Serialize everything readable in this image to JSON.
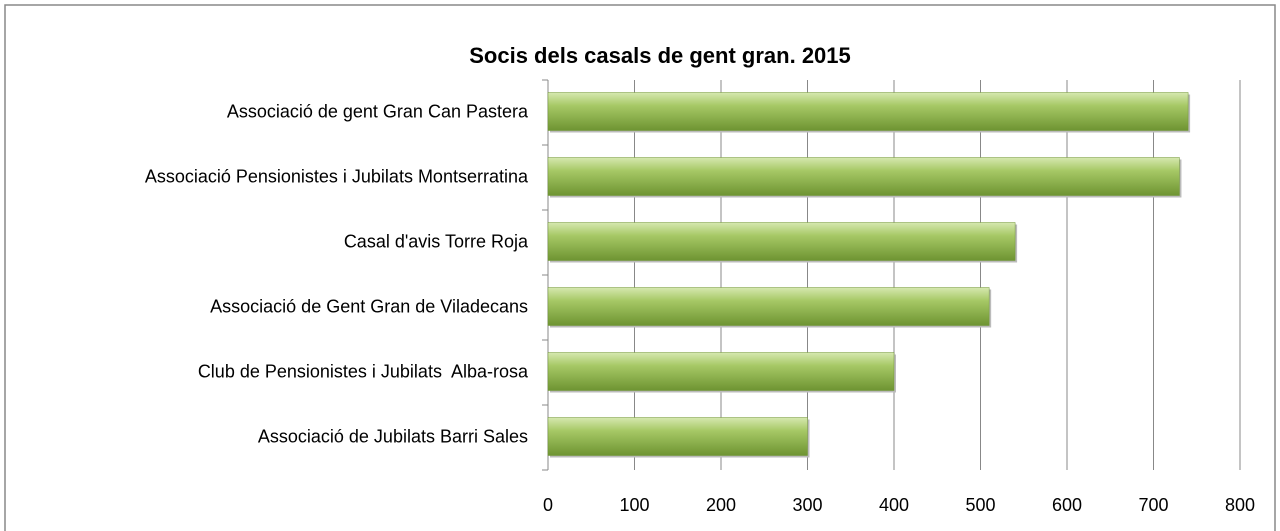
{
  "chart_data": {
    "type": "hbar",
    "title": "Socis dels casals de gent gran. 2015",
    "categories": [
      "Associació de gent Gran Can Pastera",
      "Associació Pensionistes i Jubilats Montserratina",
      "Casal d'avis Torre Roja",
      "Associació de Gent Gran de Viladecans",
      "Club de Pensionistes i Jubilats  Alba-rosa",
      "Associació de Jubilats Barri Sales"
    ],
    "values": [
      740,
      730,
      540,
      510,
      400,
      300
    ],
    "color": "#8db14c",
    "xlim": [
      0,
      800
    ],
    "xticks": [
      0,
      100,
      200,
      300,
      400,
      500,
      600,
      700,
      800
    ],
    "grid": true
  }
}
